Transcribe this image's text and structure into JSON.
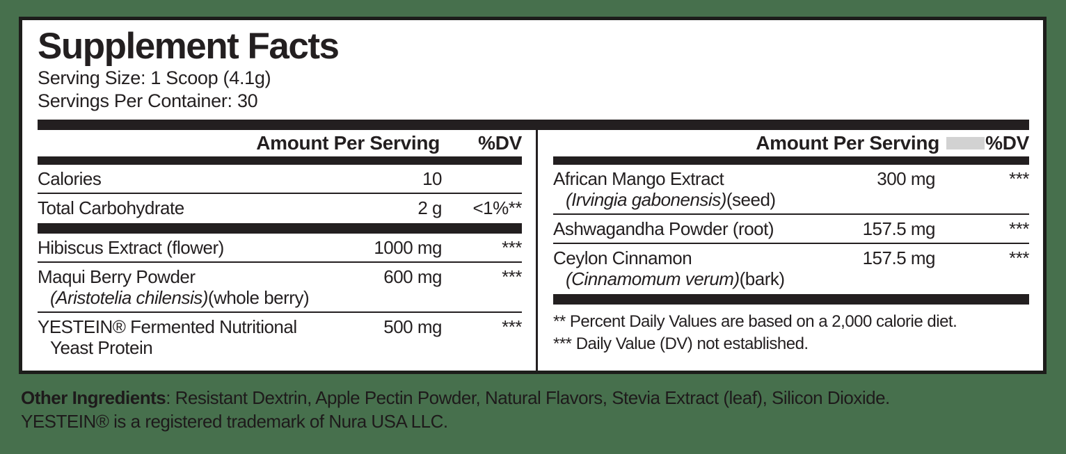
{
  "label": {
    "title": "Supplement Facts",
    "serving_size": "Serving Size: 1 Scoop (4.1g)",
    "servings_per_container": "Servings Per Container: 30",
    "left_column": {
      "header_amount": "Amount Per Serving",
      "header_dv": "%DV",
      "rows": [
        {
          "name": "Calories",
          "amount": "10",
          "dv": ""
        },
        {
          "name": "Total Carbohydrate",
          "amount": "2 g",
          "dv": "<1%**"
        },
        {
          "name": "Hibiscus Extract (flower)",
          "amount": "1000 mg",
          "dv": "***"
        },
        {
          "name": "Maqui Berry Powder",
          "name2_italic": "(Aristotelia chilensis)",
          "name2_rest": "(whole berry)",
          "amount": "600 mg",
          "dv": "***"
        },
        {
          "name": "YESTEIN® Fermented Nutritional",
          "name2_italic": "",
          "name2_rest": "Yeast Protein",
          "amount": "500 mg",
          "dv": "***"
        }
      ]
    },
    "right_column": {
      "header_amount": "Amount Per Serving",
      "header_dv": "%DV",
      "rows": [
        {
          "name": "African Mango Extract",
          "name2_italic": "(Irvingia gabonensis)",
          "name2_rest": "(seed)",
          "amount": "300 mg",
          "dv": "***"
        },
        {
          "name": "Ashwagandha Powder (root)",
          "amount": "157.5 mg",
          "dv": "***"
        },
        {
          "name": "Ceylon Cinnamon",
          "name2_italic": "(Cinnamomum verum)",
          "name2_rest": "(bark)",
          "amount": "157.5 mg",
          "dv": "***"
        }
      ],
      "footnotes": [
        "** Percent Daily Values are based on a 2,000 calorie diet.",
        "*** Daily Value (DV) not established."
      ]
    },
    "other_ingredients_label": "Other Ingredients",
    "other_ingredients_text": ": Resistant Dextrin, Apple Pectin Powder, Natural Flavors, Stevia Extract (leaf), Silicon Dioxide.",
    "trademark_note": "YESTEIN® is a registered trademark of Nura USA LLC."
  },
  "colors": {
    "background_green": "#47704D",
    "text_black": "#231F20",
    "gray_box": "#D2D2D2",
    "panel_white": "#FFFFFF"
  }
}
